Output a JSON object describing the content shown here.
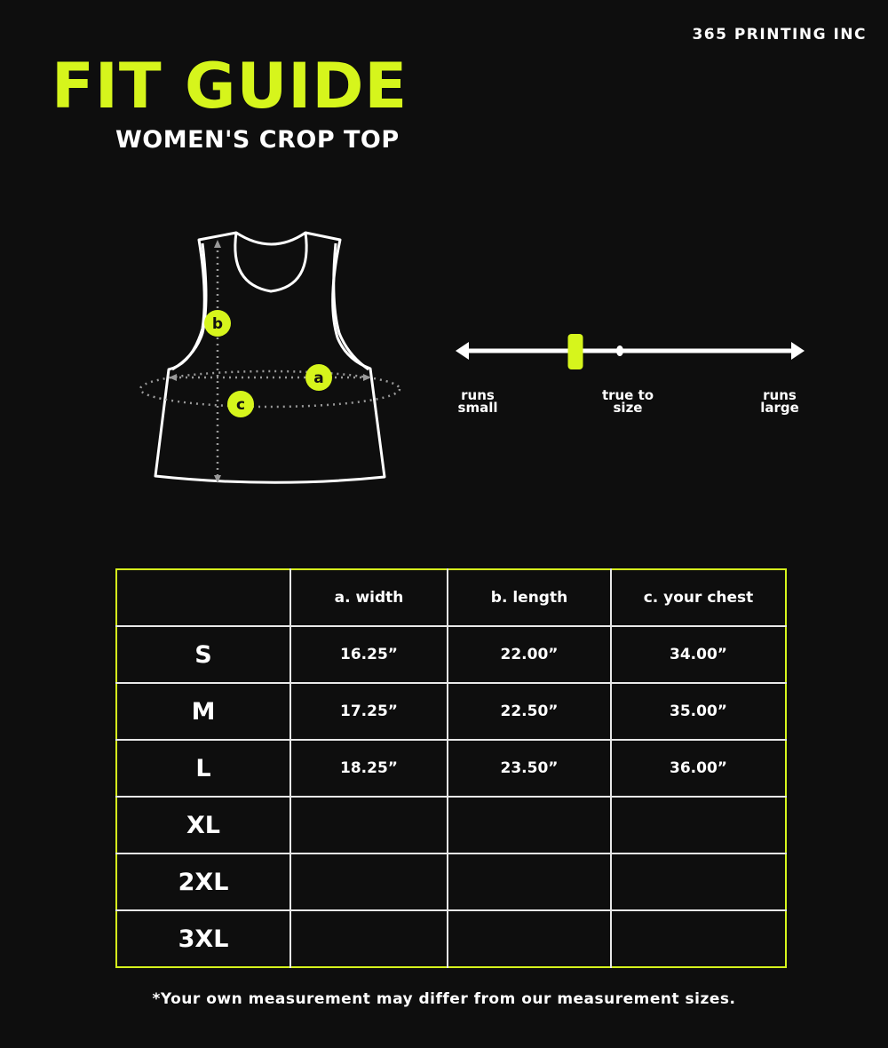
{
  "brand": "365 PRINTING INC",
  "title": "FIT GUIDE",
  "subtitle": "WOMEN'S CROP TOP",
  "colors": {
    "accent": "#d6f51c",
    "background": "#0e0e0e"
  },
  "diagram": {
    "labels": {
      "a": "a",
      "b": "b",
      "c": "c"
    }
  },
  "fit_scale": {
    "left": "runs small",
    "middle": "true to size",
    "right": "runs large",
    "marker_position_fraction": 0.34
  },
  "table": {
    "headers": [
      "",
      "a. width",
      "b. length",
      "c. your chest"
    ],
    "rows": [
      [
        "S",
        "16.25”",
        "22.00”",
        "34.00”"
      ],
      [
        "M",
        "17.25”",
        "22.50”",
        "35.00”"
      ],
      [
        "L",
        "18.25”",
        "23.50”",
        "36.00”"
      ],
      [
        "XL",
        "",
        "",
        ""
      ],
      [
        "2XL",
        "",
        "",
        ""
      ],
      [
        "3XL",
        "",
        "",
        ""
      ]
    ]
  },
  "note": "*Your own measurement may differ from our measurement sizes."
}
